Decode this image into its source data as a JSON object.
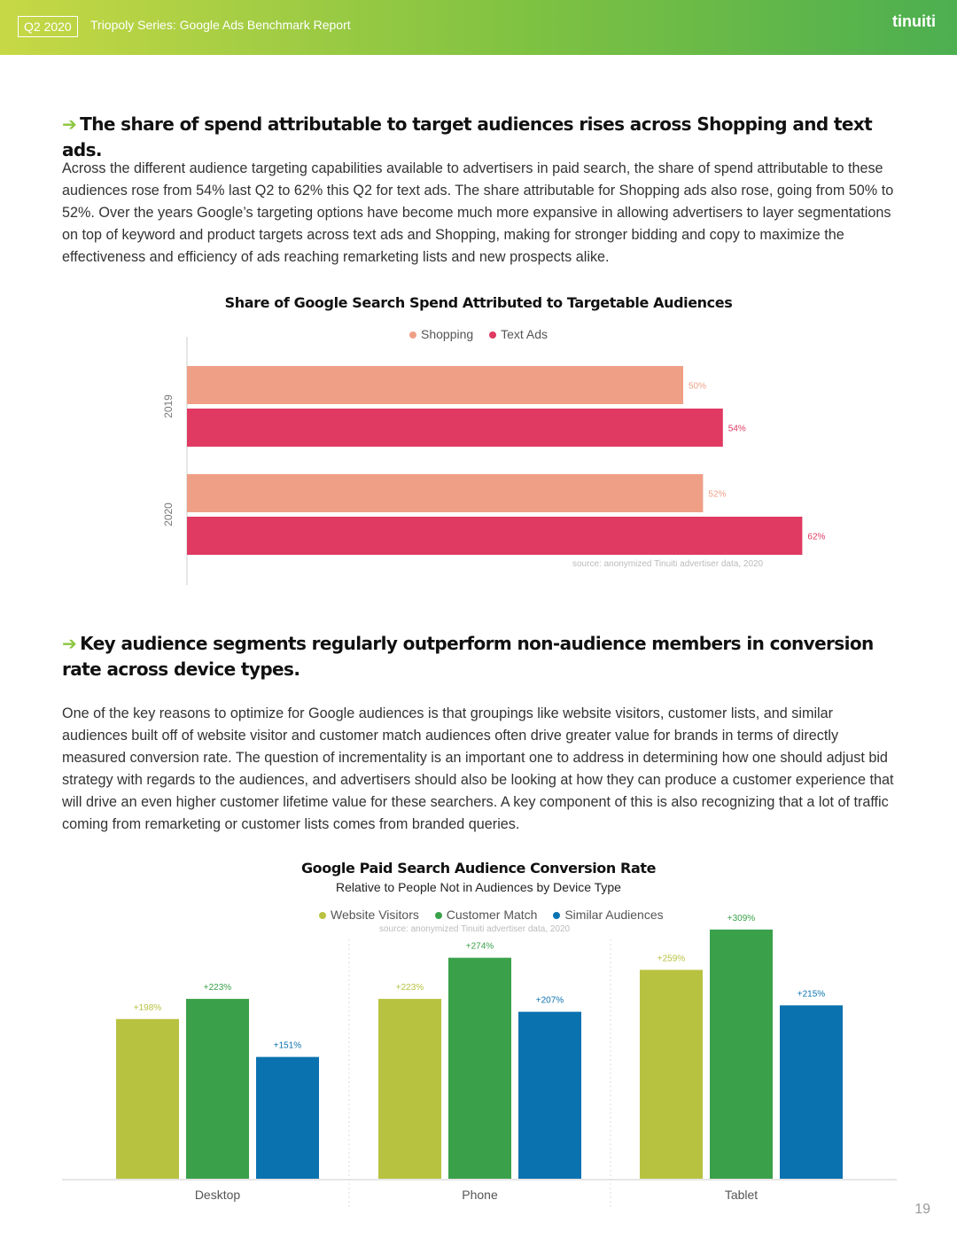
{
  "header": {
    "quarter": "Q2 2020",
    "title": "Triopoly Series: Google Ads Benchmark Report",
    "logo": "tinuiti"
  },
  "section1": {
    "heading": "The share of spend attributable to target audiences rises across Shopping and text ads.",
    "paragraph": "Across the different audience targeting capabilities available to advertisers in paid search, the share of spend attributable to these audiences rose from 54% last Q2 to 62% this Q2 for text ads. The share attributable for Shopping ads also rose, going from 50% to 52%. Over the years Google’s targeting options have become much more expansive in allowing advertisers to layer segmentations on top of keyword and product targets across text ads and Shopping, making for stronger bidding and copy to maximize the effectiveness and efficiency of ads reaching remarketing lists and new prospects alike."
  },
  "section2": {
    "heading": "Key audience segments regularly outperform non-audience members in conversion rate across device types.",
    "paragraph": "One of the key reasons to optimize for Google audiences is that groupings like website visitors, customer lists, and similar audiences built off of website visitor and customer match audiences often drive greater value for brands in terms of directly measured conversion rate. The question of incrementality is an important one to address in determining how one should adjust bid strategy with regards to the audiences, and advertisers should also be looking at how they can produce a customer experience that will drive an even higher customer lifetime value for these searchers. A key component of this is also recognizing that a lot of traffic coming from remarketing or customer lists comes from branded queries."
  },
  "page_number": "19",
  "chart_data": [
    {
      "type": "bar",
      "orientation": "horizontal",
      "title": "Share of Google Search Spend Attributed to Targetable Audiences",
      "categories": [
        "2019",
        "2020"
      ],
      "series": [
        {
          "name": "Shopping",
          "values": [
            50,
            52
          ],
          "labels": [
            "50%",
            "52%"
          ],
          "color": "#ef9f86"
        },
        {
          "name": "Text Ads",
          "values": [
            54,
            62
          ],
          "labels": [
            "54%",
            "62%"
          ],
          "color": "#e03a62"
        }
      ],
      "xlim": [
        0,
        75
      ],
      "legend": "top-center",
      "source": "source: anonymized Tinuiti advertiser data, 2020"
    },
    {
      "type": "bar",
      "orientation": "vertical",
      "title": "Google Paid Search Audience Conversion Rate",
      "subtitle": "Relative to People Not in Audiences by Device Type",
      "categories": [
        "Desktop",
        "Phone",
        "Tablet"
      ],
      "series": [
        {
          "name": "Website Visitors",
          "values": [
            198,
            223,
            259
          ],
          "labels": [
            "+198%",
            "+223%",
            "+259%"
          ],
          "color": "#b8c241"
        },
        {
          "name": "Customer Match",
          "values": [
            223,
            274,
            309
          ],
          "labels": [
            "+223%",
            "+274%",
            "+309%"
          ],
          "color": "#3aa14a"
        },
        {
          "name": "Similar Audiences",
          "values": [
            151,
            207,
            215
          ],
          "labels": [
            "+151%",
            "+207%",
            "+215%"
          ],
          "color": "#0b72b0"
        }
      ],
      "ylim": [
        0,
        320
      ],
      "legend": "top-center",
      "source": "source: anonymized Tinuiti advertiser data, 2020"
    }
  ]
}
